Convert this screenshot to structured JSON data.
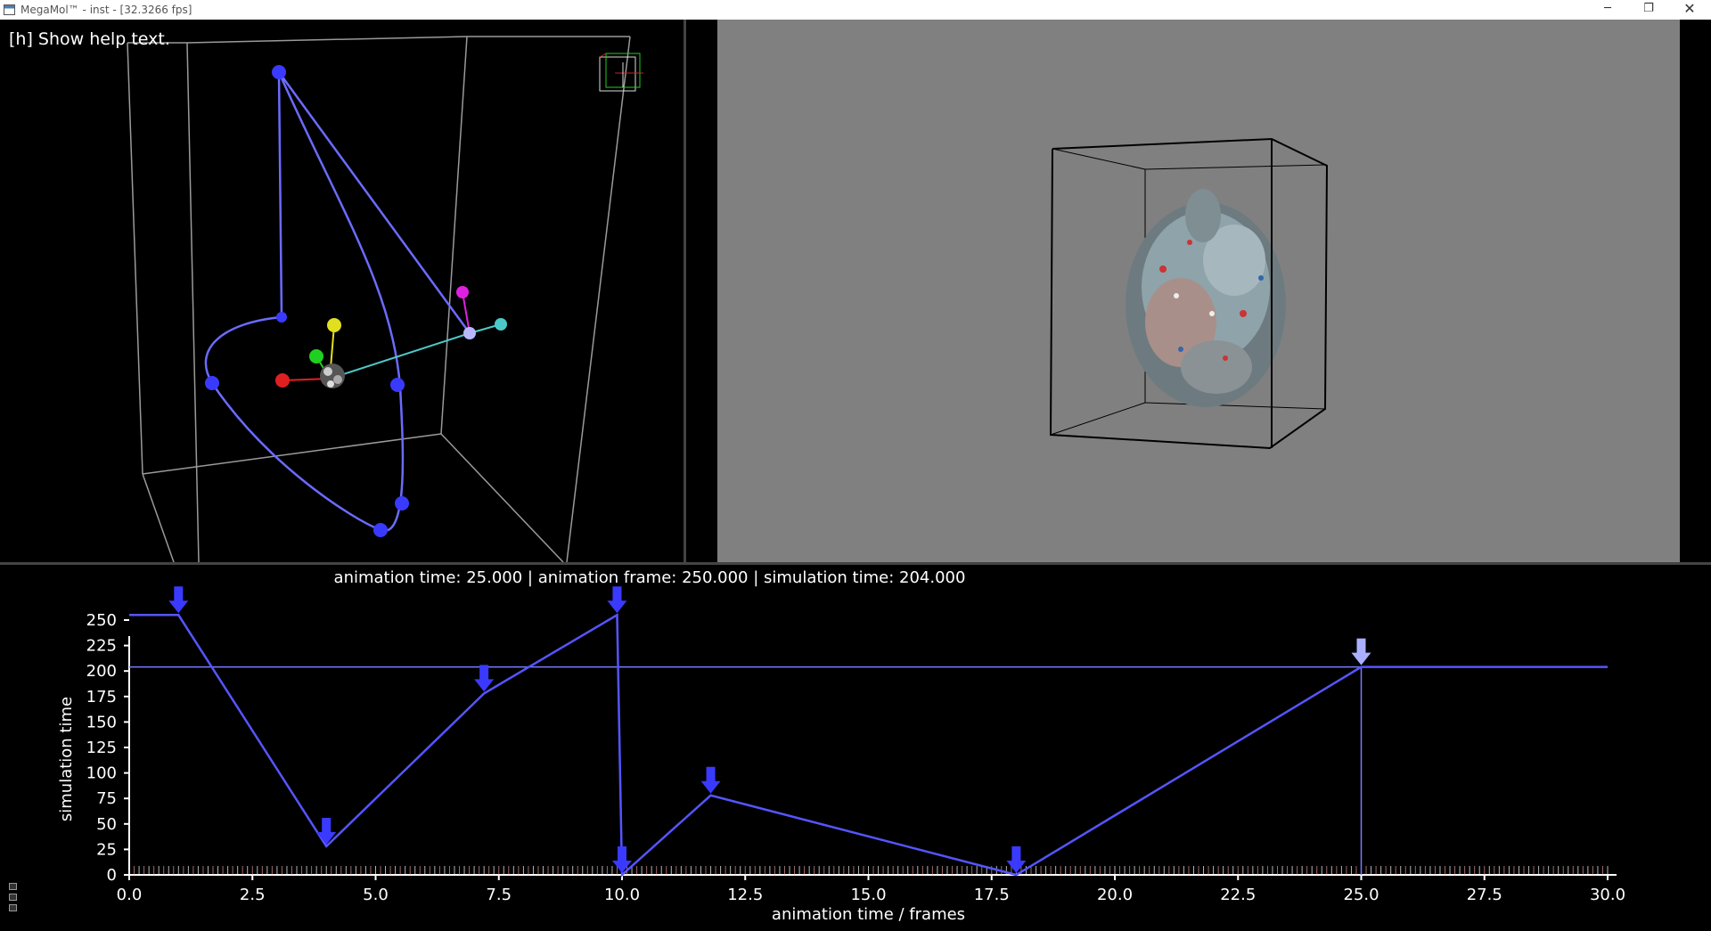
{
  "window": {
    "title": "MegaMol™ - inst - [32.3266 fps]",
    "minimize_symbol": "─",
    "restore_symbol": "❐",
    "close_symbol": "✕"
  },
  "left_view": {
    "help_text": "[h] Show help text."
  },
  "timeline": {
    "status": "animation time: 25.000 | animation frame: 250.000 | simulation time: 204.000"
  },
  "colors": {
    "curve": "#5555ff",
    "keyframe_marker": "#3a3aff",
    "selected_marker": "#aab0ff",
    "axis_bg_right": "#808080"
  },
  "chart_data": {
    "type": "line",
    "xlabel": "animation time / frames",
    "ylabel": "simulation time",
    "xlim": [
      0,
      30
    ],
    "ylim": [
      0,
      250
    ],
    "x_ticks": [
      "0.0",
      "2.5",
      "5.0",
      "7.5",
      "10.0",
      "12.5",
      "15.0",
      "17.5",
      "20.0",
      "22.5",
      "25.0",
      "27.5",
      "30.0"
    ],
    "y_ticks": [
      "0",
      "25",
      "50",
      "75",
      "100",
      "125",
      "150",
      "175",
      "200",
      "225",
      "250"
    ],
    "series": [
      {
        "x": [
          0,
          1,
          4,
          7.2,
          9.9,
          10.0,
          11.8,
          18.0,
          25.0,
          30.0
        ],
        "y": [
          255,
          255,
          28,
          178,
          255,
          0,
          78,
          0,
          204,
          204
        ]
      }
    ],
    "keyframes": [
      {
        "x": 1.0,
        "y": 255
      },
      {
        "x": 4.0,
        "y": 28
      },
      {
        "x": 7.2,
        "y": 178
      },
      {
        "x": 9.9,
        "y": 255
      },
      {
        "x": 10.0,
        "y": 0
      },
      {
        "x": 11.8,
        "y": 78
      },
      {
        "x": 18.0,
        "y": 0
      },
      {
        "x": 25.0,
        "y": 204,
        "selected": true
      }
    ],
    "current_animation_time": 25.0,
    "current_simulation_time": 204.0,
    "grid": false
  }
}
